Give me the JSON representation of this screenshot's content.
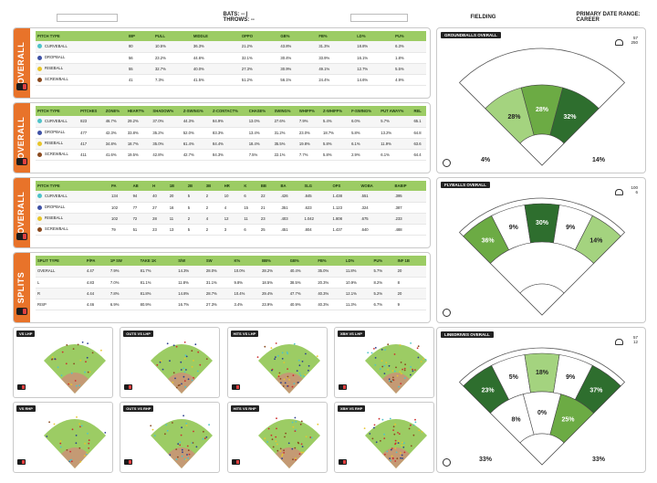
{
  "header": {
    "name_box": "",
    "bats_throws": "BATS: -- | THROWS: --",
    "date_box": "",
    "fielding": "FIELDING",
    "date_range": "PRIMARY DATE RANGE: CAREER"
  },
  "pitch_types": [
    {
      "name": "CURVEBALL",
      "color": "#4fc3c9"
    },
    {
      "name": "DROPBALL",
      "color": "#3f52a6"
    },
    {
      "name": "RISEBALL",
      "color": "#e8c52a"
    },
    {
      "name": "SCREWBALL",
      "color": "#8a4a1f"
    }
  ],
  "table1": {
    "label": "OVERALL",
    "headers": [
      "PITCH TYPE",
      "BIP",
      "PULL",
      "MIDDLE",
      "OPPO",
      "GB%",
      "FB%",
      "LD%",
      "PU%"
    ],
    "rows": [
      [
        "CURVEBALL",
        "80",
        "10.5%",
        "36.3%",
        "21.2%",
        "43.8%",
        "31.3%",
        "18.8%",
        "6.3%"
      ],
      [
        "DROPBALL",
        "56",
        "23.2%",
        "44.6%",
        "32.1%",
        "30.4%",
        "33.9%",
        "16.1%",
        "1.8%"
      ],
      [
        "RISEBALL",
        "55",
        "32.7%",
        "40.0%",
        "27.3%",
        "30.9%",
        "49.1%",
        "12.7%",
        "5.5%"
      ],
      [
        "SCREWBALL",
        "41",
        "7.3%",
        "41.5%",
        "51.2%",
        "56.1%",
        "24.4%",
        "14.6%",
        "4.9%"
      ]
    ]
  },
  "table2": {
    "label": "OVERALL",
    "headers": [
      "PITCH TYPE",
      "PITCHES",
      "ZONE%",
      "HEART%",
      "SHADOW%",
      "Z-SWING%",
      "Z-CONTACT%",
      "CHASE%",
      "SWING%",
      "WHIFF%",
      "Z-WHIFF%",
      "F-SWING%",
      "PUT AWAY%",
      "REL"
    ],
    "rows": [
      [
        "CURVEBALL",
        "823",
        "46.7%",
        "29.2%",
        "37.0%",
        "44.3%",
        "84.9%",
        "13.0%",
        "27.6%",
        "7.9%",
        "5.4%",
        "6.0%",
        "5.7%",
        "65.1"
      ],
      [
        "DROPBALL",
        "477",
        "42.3%",
        "33.8%",
        "35.2%",
        "52.0%",
        "83.3%",
        "13.4%",
        "31.2%",
        "23.0%",
        "18.7%",
        "5.8%",
        "13.2%",
        "64.8"
      ],
      [
        "RISEBALL",
        "417",
        "34.8%",
        "18.7%",
        "35.0%",
        "61.4%",
        "84.4%",
        "18.4%",
        "35.5%",
        "19.8%",
        "5.8%",
        "6.1%",
        "11.9%",
        "63.6"
      ],
      [
        "SCREWBALL",
        "411",
        "41.6%",
        "19.5%",
        "42.8%",
        "42.7%",
        "84.3%",
        "7.5%",
        "22.1%",
        "7.7%",
        "5.8%",
        "2.9%",
        "6.1%",
        "64.4"
      ]
    ]
  },
  "table3": {
    "label": "OVERALL",
    "headers": [
      "PITCH TYPE",
      "PA",
      "AB",
      "H",
      "1B",
      "2B",
      "3B",
      "HR",
      "K",
      "BB",
      "BA",
      "SLG",
      "OPS",
      "WOBA",
      "BABIP"
    ],
    "rows": [
      [
        "CURVEBALL",
        "134",
        "94",
        "40",
        "20",
        "5",
        "2",
        "10",
        "6",
        "22",
        ".426",
        ".845",
        "1.438",
        ".551",
        ".395"
      ],
      [
        "DROPBALL",
        "102",
        "77",
        "27",
        "16",
        "5",
        "2",
        "4",
        "15",
        "21",
        ".351",
        ".623",
        "1.123",
        ".324",
        ".387"
      ],
      [
        "RISEBALL",
        "102",
        "72",
        "28",
        "11",
        "2",
        "4",
        "12",
        "11",
        "23",
        ".403",
        "1.042",
        "1.808",
        ".675",
        ".233"
      ],
      [
        "SCREWBALL",
        "79",
        "51",
        "23",
        "13",
        "5",
        "2",
        "3",
        "6",
        "25",
        ".451",
        ".804",
        "1.437",
        ".640",
        ".488"
      ]
    ]
  },
  "table4": {
    "label": "SPLITS",
    "headers": [
      "SPLIT TYPE",
      "P/PA",
      "1P SW",
      "TAKE 1K",
      "S/W",
      "SW",
      "K%",
      "BB%",
      "GB%",
      "FB%",
      "LD%",
      "PU%",
      "INF 1B"
    ],
    "rows": [
      [
        "OVERALL",
        "4.47",
        "7.9%",
        "81.7%",
        "14.3%",
        "28.0%",
        "10.0%",
        "28.2%",
        "40.4%",
        "35.0%",
        "11.8%",
        "5.7%",
        "20"
      ],
      [
        "L",
        "4.83",
        "7.0%",
        "81.1%",
        "11.8%",
        "31.1%",
        "9.8%",
        "18.5%",
        "38.5%",
        "20.3%",
        "10.9%",
        "8.2%",
        "8"
      ],
      [
        "R",
        "4.44",
        "7.8%",
        "81.8%",
        "14.8%",
        "28.7%",
        "10.4%",
        "29.4%",
        "47.7%",
        "40.3%",
        "12.1%",
        "5.2%",
        "20"
      ],
      [
        "RISP",
        "4.46",
        "6.9%",
        "80.9%",
        "16.7%",
        "27.3%",
        "3.4%",
        "23.9%",
        "40.9%",
        "40.3%",
        "11.3%",
        "6.7%",
        "9"
      ]
    ]
  },
  "minis": [
    {
      "title": "VS LHP"
    },
    {
      "title": "OUTS VS LHP"
    },
    {
      "title": "HITS VS LHP"
    },
    {
      "title": "XBH VS LHP"
    },
    {
      "title": "VS RHP"
    },
    {
      "title": "OUTS VS RHP"
    },
    {
      "title": "HITS VS RHP"
    },
    {
      "title": "XBH VS RHP"
    }
  ],
  "sprays": [
    {
      "title": "GROUNDBALLS OVERALL",
      "counts": [
        "57",
        "250"
      ],
      "colors": {
        "light": "#a4d37f",
        "mid": "#6cab44",
        "dark": "#2e6e2e"
      },
      "zones": [
        {
          "label": "28%",
          "fill": "light"
        },
        {
          "label": "28%",
          "fill": "mid"
        },
        {
          "label": "32%",
          "fill": "dark"
        }
      ],
      "outer": [],
      "foul_left": "4%",
      "foul_right": "14%"
    },
    {
      "title": "FLYBALLS OVERALL",
      "counts": [
        "100",
        "6"
      ],
      "colors": {
        "light": "#a4d37f",
        "mid": "#6cab44",
        "dark": "#2e6e2e"
      },
      "zones": [
        {
          "label": "36%",
          "fill": "mid"
        },
        {
          "label": "9%",
          "fill": "white"
        },
        {
          "label": "30%",
          "fill": "dark"
        },
        {
          "label": "9%",
          "fill": "white"
        },
        {
          "label": "14%",
          "fill": "light"
        }
      ],
      "outer": [],
      "foul_left": "",
      "foul_right": ""
    },
    {
      "title": "LINEDRIVES OVERALL",
      "counts": [
        "57",
        "12"
      ],
      "colors": {
        "light": "#a4d37f",
        "mid": "#6cab44",
        "dark": "#2e6e2e"
      },
      "zones": [
        {
          "label": "23%",
          "fill": "dark"
        },
        {
          "label": "5%",
          "fill": "white"
        },
        {
          "label": "18%",
          "fill": "light"
        },
        {
          "label": "9%",
          "fill": "white"
        },
        {
          "label": "37%",
          "fill": "dark"
        }
      ],
      "inner": [
        {
          "label": "8%",
          "fill": "white"
        },
        {
          "label": "0%",
          "fill": "white"
        },
        {
          "label": "25%",
          "fill": "mid"
        }
      ],
      "foul_left": "33%",
      "foul_right": "33%"
    }
  ]
}
